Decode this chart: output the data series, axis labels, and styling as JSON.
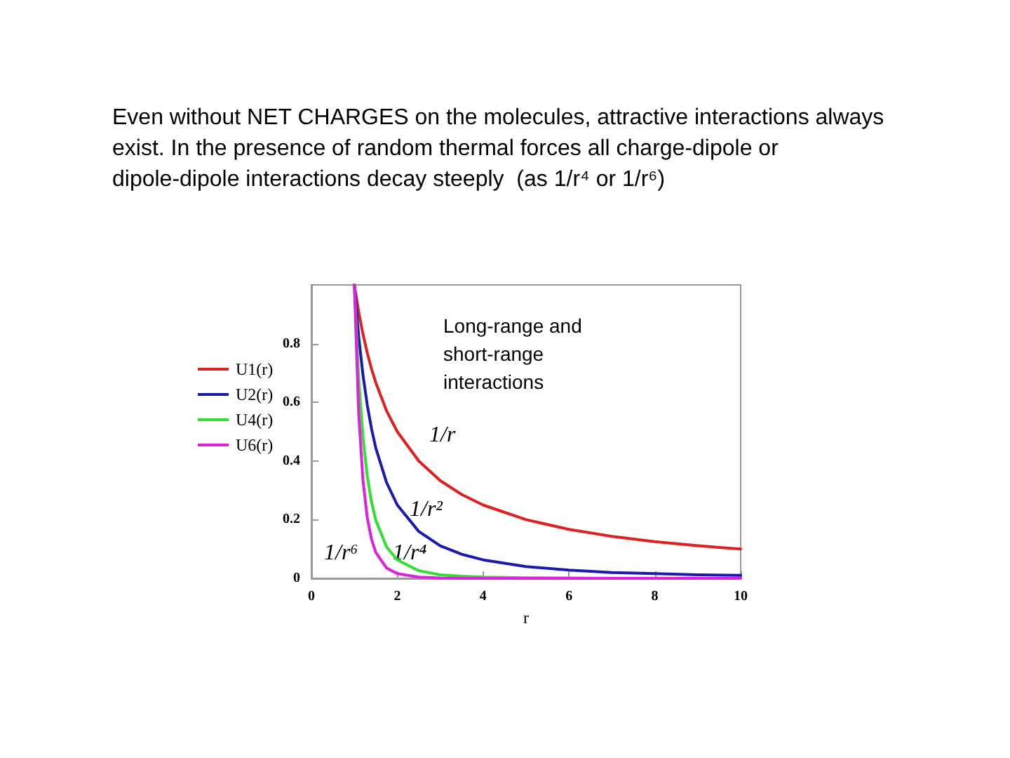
{
  "chart_data": {
    "type": "line",
    "title": "Even without NET CHARGES on the molecules, attractive interactions always exist. In the presence of random thermal forces all charge-dipole or dipole-dipole interactions decay steeply  (as 1/r⁴ or 1/r⁶)",
    "xlabel": "r",
    "x": [
      1,
      1.1,
      1.2,
      1.3,
      1.4,
      1.5,
      1.75,
      2,
      2.5,
      3,
      3.5,
      4,
      5,
      6,
      7,
      8,
      9,
      10
    ],
    "series": [
      {
        "name": "U1(r)",
        "color": "#e02020",
        "values": [
          1,
          0.909,
          0.833,
          0.769,
          0.714,
          0.667,
          0.571,
          0.5,
          0.4,
          0.333,
          0.286,
          0.25,
          0.2,
          0.167,
          0.143,
          0.125,
          0.111,
          0.1
        ]
      },
      {
        "name": "U2(r)",
        "color": "#1a1ab0",
        "values": [
          1,
          0.826,
          0.694,
          0.592,
          0.51,
          0.444,
          0.327,
          0.25,
          0.16,
          0.111,
          0.082,
          0.063,
          0.04,
          0.028,
          0.02,
          0.016,
          0.012,
          0.01
        ]
      },
      {
        "name": "U4(r)",
        "color": "#30e030",
        "values": [
          1,
          0.683,
          0.482,
          0.35,
          0.26,
          0.198,
          0.107,
          0.063,
          0.026,
          0.012,
          0.007,
          0.004,
          0.002,
          0.001,
          0,
          null,
          null,
          null
        ]
      },
      {
        "name": "U6(r)",
        "color": "#e020e0",
        "values": [
          1,
          0.564,
          0.335,
          0.207,
          0.133,
          0.088,
          0.035,
          0.016,
          0.004,
          0.001,
          0,
          0,
          0,
          0,
          0,
          0,
          0,
          0
        ]
      }
    ],
    "xlim": [
      0,
      10
    ],
    "xticks": [
      0,
      2,
      4,
      6,
      8,
      10
    ],
    "ylim": [
      0,
      1
    ],
    "yticks": [
      0,
      0.2,
      0.4,
      0.6,
      0.8
    ],
    "annotations": [
      "Long-range and short-range interactions",
      "1/r",
      "1/r²",
      "1/r⁴",
      "1/r⁶"
    ],
    "legend": "left",
    "grid": false,
    "marker": "none",
    "line_style": "solid"
  }
}
